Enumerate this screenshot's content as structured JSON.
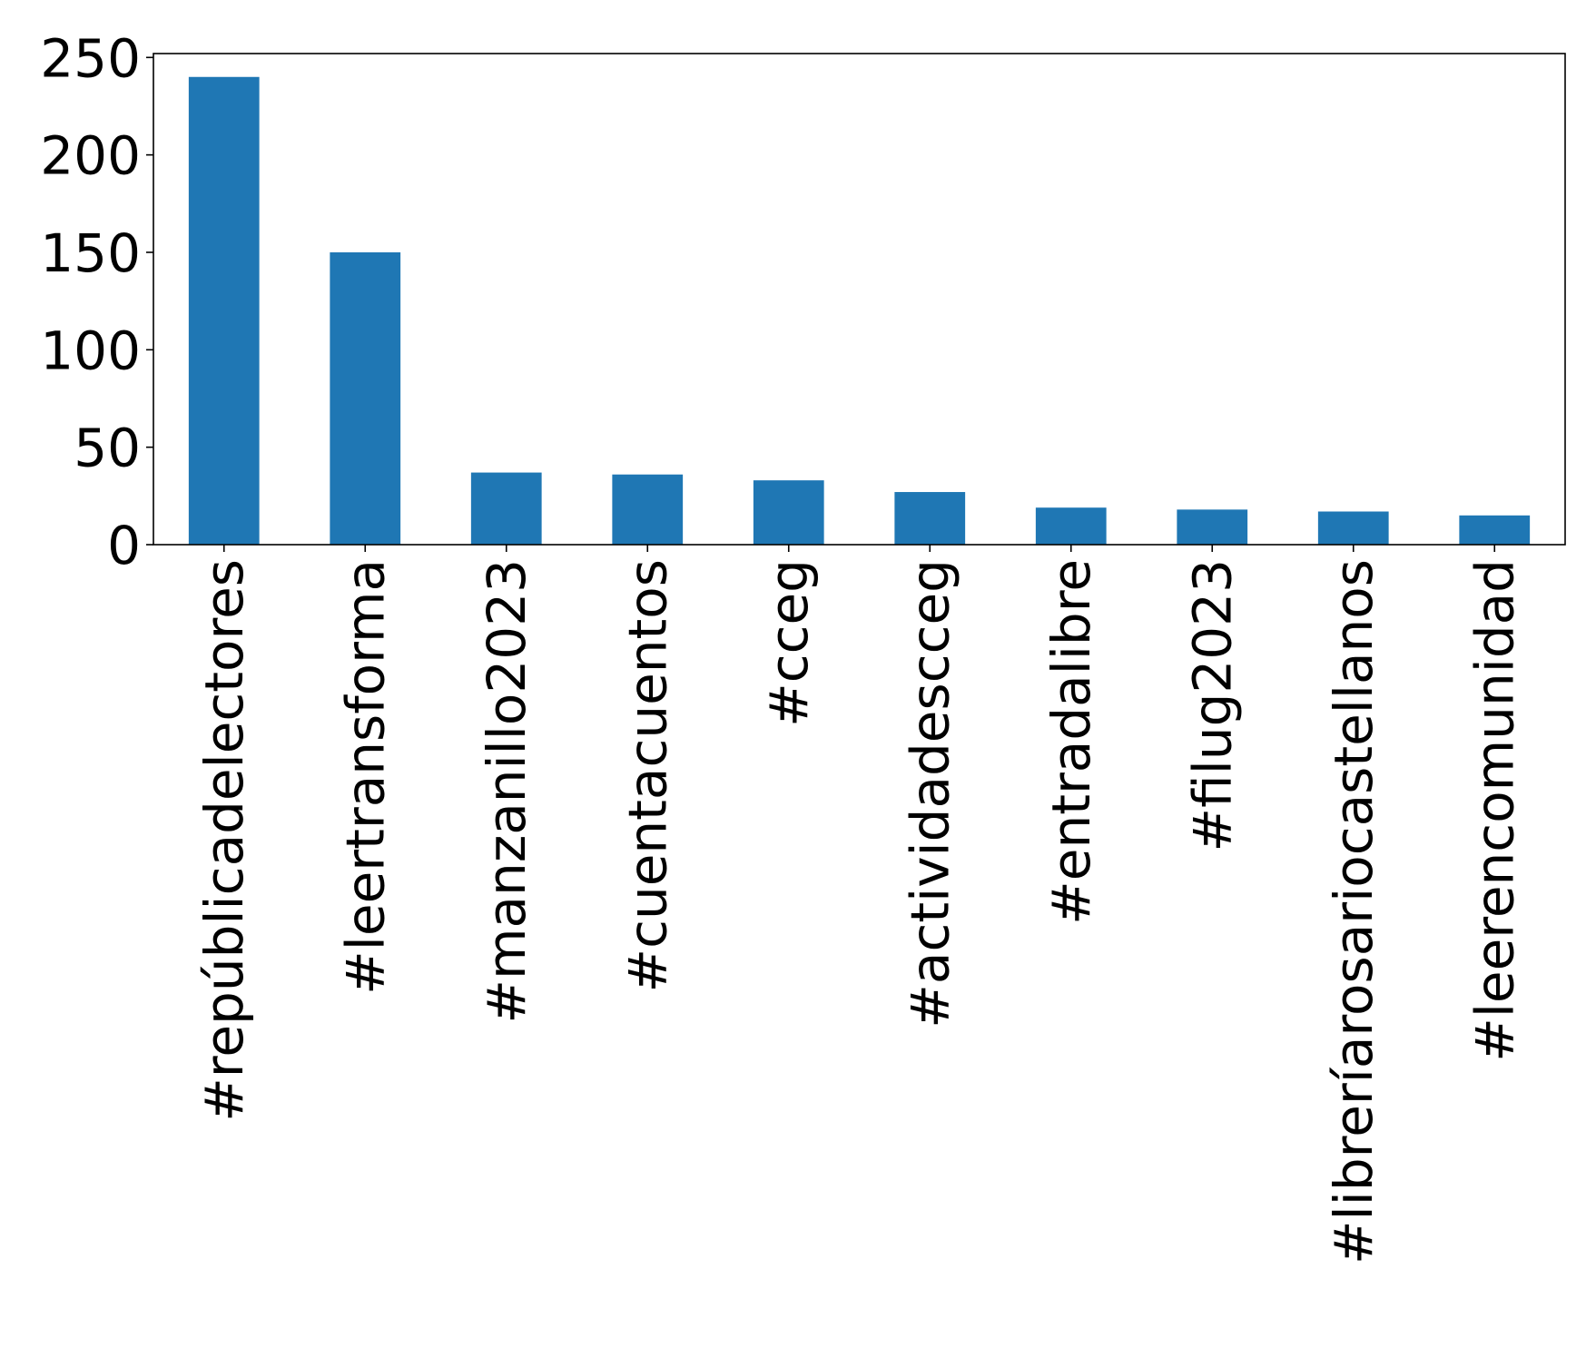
{
  "chart_data": {
    "type": "bar",
    "title": "",
    "xlabel": "",
    "ylabel": "",
    "categories": [
      "#repúblicadelectores",
      "#leertransforma",
      "#manzanillo2023",
      "#cuentacuentos",
      "#cceg",
      "#actividadescceg",
      "#entradalibre",
      "#filug2023",
      "#libreríarosariocastellanos",
      "#leerencomunidad"
    ],
    "values": [
      240,
      150,
      37,
      36,
      33,
      27,
      19,
      18,
      17,
      15
    ],
    "ylim": [
      0,
      252
    ],
    "yticks": [
      "0",
      "50",
      "100",
      "150",
      "200",
      "250"
    ],
    "bar_color": "#1f77b4",
    "grid": false,
    "legend": "none"
  }
}
